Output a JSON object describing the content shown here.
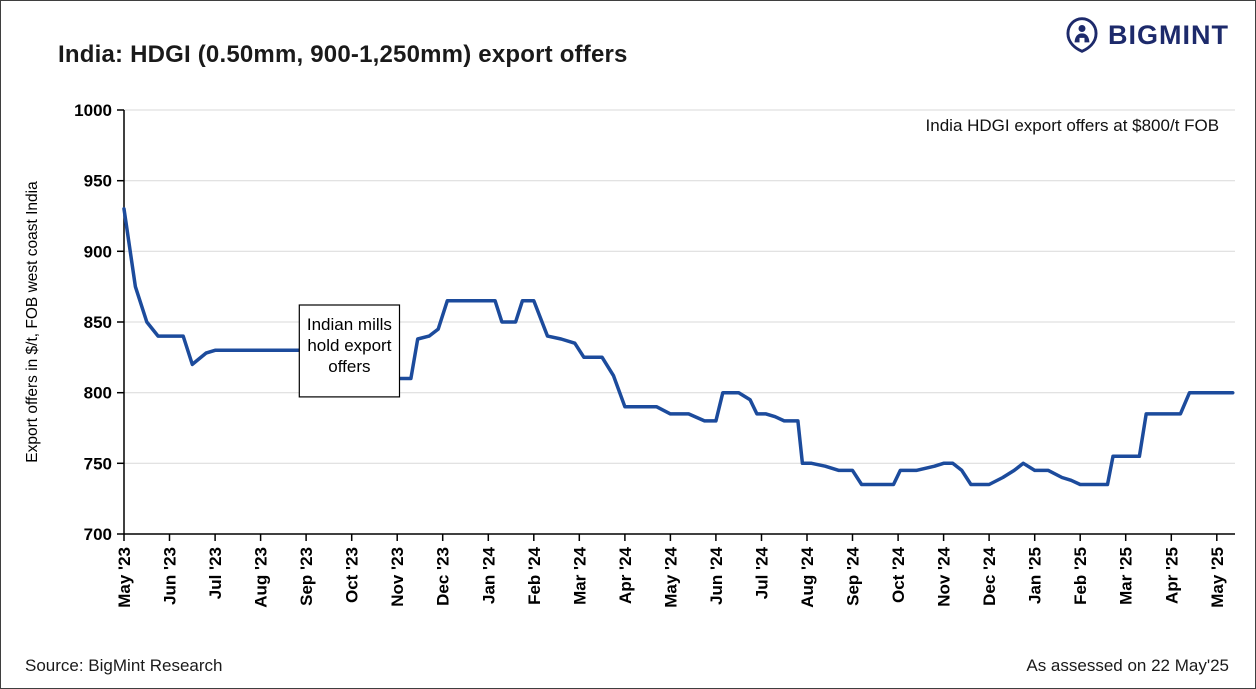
{
  "header": {
    "title": "India: HDGI (0.50mm, 900-1,250mm) export offers",
    "brand": "BIGMINT"
  },
  "footer": {
    "source": "Source: BigMint Research",
    "assessed": "As assessed on 22 May'25"
  },
  "chart_data": {
    "type": "line",
    "title": "India: HDGI (0.50mm, 900-1,250mm) export offers",
    "xlabel": "",
    "ylabel": "Export offers in $/t, FOB west coast India",
    "ylim": [
      700,
      1000
    ],
    "yticks": [
      700,
      750,
      800,
      850,
      900,
      950,
      1000
    ],
    "grid": "horizontal",
    "legend": "none",
    "xmax": 24.4,
    "x_tick_labels": [
      "May '23",
      "Jun '23",
      "Jul '23",
      "Aug '23",
      "Sep '23",
      "Oct '23",
      "Nov '23",
      "Dec '23",
      "Jan '24",
      "Feb '24",
      "Mar '24",
      "Apr '24",
      "May '24",
      "Jun '24",
      "Jul '24",
      "Aug '24",
      "Sep '24",
      "Oct '24",
      "Nov '24",
      "Dec '24",
      "Jan '25",
      "Feb '25",
      "Mar '25",
      "Apr '25",
      "May '25"
    ],
    "series": [
      {
        "name": "India HDGI export offers ($/t FOB west coast India)",
        "color": "#1c4b9c",
        "points": [
          [
            0,
            930
          ],
          [
            0.25,
            875
          ],
          [
            0.5,
            850
          ],
          [
            0.75,
            840
          ],
          [
            1,
            840
          ],
          [
            1.3,
            840
          ],
          [
            1.5,
            820
          ],
          [
            1.8,
            828
          ],
          [
            2,
            830
          ],
          [
            2.5,
            830
          ],
          [
            3,
            830
          ],
          [
            3.5,
            830
          ],
          [
            4,
            830
          ],
          [
            4.4,
            833
          ],
          [
            4.7,
            835
          ],
          [
            5,
            827
          ],
          [
            5.5,
            816
          ],
          [
            6,
            810
          ],
          [
            6.3,
            810
          ],
          [
            6.45,
            838
          ],
          [
            6.7,
            840
          ],
          [
            6.9,
            845
          ],
          [
            7.1,
            865
          ],
          [
            7.5,
            865
          ],
          [
            8,
            865
          ],
          [
            8.15,
            865
          ],
          [
            8.3,
            850
          ],
          [
            8.6,
            850
          ],
          [
            8.75,
            865
          ],
          [
            9,
            865
          ],
          [
            9.3,
            840
          ],
          [
            9.6,
            838
          ],
          [
            9.9,
            835
          ],
          [
            10.1,
            825
          ],
          [
            10.5,
            825
          ],
          [
            10.75,
            812
          ],
          [
            11,
            790
          ],
          [
            11.4,
            790
          ],
          [
            11.7,
            790
          ],
          [
            12,
            785
          ],
          [
            12.4,
            785
          ],
          [
            12.75,
            780
          ],
          [
            13,
            780
          ],
          [
            13.15,
            800
          ],
          [
            13.5,
            800
          ],
          [
            13.75,
            795
          ],
          [
            13.9,
            785
          ],
          [
            14.1,
            785
          ],
          [
            14.3,
            783
          ],
          [
            14.5,
            780
          ],
          [
            14.8,
            780
          ],
          [
            14.9,
            750
          ],
          [
            15.1,
            750
          ],
          [
            15.4,
            748
          ],
          [
            15.7,
            745
          ],
          [
            16,
            745
          ],
          [
            16.2,
            735
          ],
          [
            16.6,
            735
          ],
          [
            16.9,
            735
          ],
          [
            17.05,
            745
          ],
          [
            17.4,
            745
          ],
          [
            17.8,
            748
          ],
          [
            18,
            750
          ],
          [
            18.2,
            750
          ],
          [
            18.4,
            745
          ],
          [
            18.6,
            735
          ],
          [
            19,
            735
          ],
          [
            19.3,
            740
          ],
          [
            19.55,
            745
          ],
          [
            19.75,
            750
          ],
          [
            20,
            745
          ],
          [
            20.3,
            745
          ],
          [
            20.6,
            740
          ],
          [
            20.8,
            738
          ],
          [
            21,
            735
          ],
          [
            21.4,
            735
          ],
          [
            21.6,
            735
          ],
          [
            21.72,
            755
          ],
          [
            22,
            755
          ],
          [
            22.3,
            755
          ],
          [
            22.45,
            785
          ],
          [
            22.8,
            785
          ],
          [
            23.2,
            785
          ],
          [
            23.4,
            800
          ],
          [
            23.7,
            800
          ],
          [
            24,
            800
          ],
          [
            24.35,
            800
          ]
        ]
      }
    ],
    "annotations": {
      "callout": {
        "lines": [
          "Indian mills",
          "hold export",
          "offers"
        ],
        "x_from": 3.85,
        "x_to": 6.05,
        "y_from": 797,
        "y_to": 862
      },
      "note": {
        "text": "India HDGI export offers at $800/t FOB",
        "x": 24.05,
        "y": 985
      }
    }
  }
}
